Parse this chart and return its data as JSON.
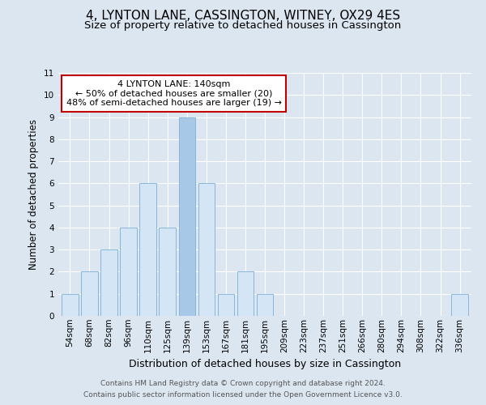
{
  "title1": "4, LYNTON LANE, CASSINGTON, WITNEY, OX29 4ES",
  "title2": "Size of property relative to detached houses in Cassington",
  "xlabel": "Distribution of detached houses by size in Cassington",
  "ylabel": "Number of detached properties",
  "categories": [
    "54sqm",
    "68sqm",
    "82sqm",
    "96sqm",
    "110sqm",
    "125sqm",
    "139sqm",
    "153sqm",
    "167sqm",
    "181sqm",
    "195sqm",
    "209sqm",
    "223sqm",
    "237sqm",
    "251sqm",
    "266sqm",
    "280sqm",
    "294sqm",
    "308sqm",
    "322sqm",
    "336sqm"
  ],
  "values": [
    1,
    2,
    3,
    4,
    6,
    4,
    9,
    6,
    1,
    2,
    1,
    0,
    0,
    0,
    0,
    0,
    0,
    0,
    0,
    0,
    1
  ],
  "highlight_index": 6,
  "highlight_color": "#a8c8e8",
  "bar_color": "#d4e6f5",
  "bar_edge_color": "#7bafd4",
  "ylim": [
    0,
    11
  ],
  "yticks": [
    0,
    1,
    2,
    3,
    4,
    5,
    6,
    7,
    8,
    9,
    10,
    11
  ],
  "annotation_title": "4 LYNTON LANE: 140sqm",
  "annotation_line1": "← 50% of detached houses are smaller (20)",
  "annotation_line2": "48% of semi-detached houses are larger (19) →",
  "annotation_box_color": "#ffffff",
  "annotation_box_edge": "#c00000",
  "footer1": "Contains HM Land Registry data © Crown copyright and database right 2024.",
  "footer2": "Contains public sector information licensed under the Open Government Licence v3.0.",
  "bg_color": "#dce6f1",
  "plot_bg": "#dce6f1",
  "grid_color": "#ffffff",
  "title1_fontsize": 11,
  "title2_fontsize": 9.5,
  "xlabel_fontsize": 9,
  "ylabel_fontsize": 8.5,
  "tick_fontsize": 7.5,
  "ann_fontsize": 8,
  "footer_fontsize": 6.5
}
